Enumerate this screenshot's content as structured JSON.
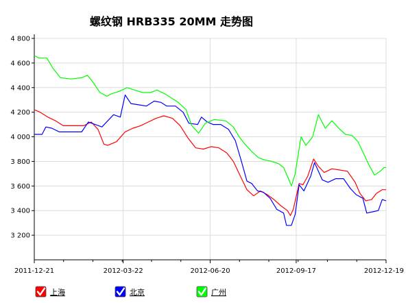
{
  "chart_data": {
    "type": "line",
    "title": "螺纹钢 HRB335 20MM 走势图",
    "xlabel": "",
    "ylabel": "",
    "x_ticks": [
      "2011-12-21",
      "2012-03-22",
      "2012-06-20",
      "2012-09-17",
      "2012-12-19"
    ],
    "y_ticks": [
      "3 200",
      "3 400",
      "3 600",
      "3 800",
      "4 000",
      "4 200",
      "4 400",
      "4 600",
      "4 800"
    ],
    "x_range": [
      "2011-12-21",
      "2012-12-19"
    ],
    "ylim": [
      3000,
      4800
    ],
    "grid": true,
    "legend_position": "bottom",
    "series": [
      {
        "name": "上海",
        "color": "#ff0000",
        "points": [
          [
            "2011-12-21",
            4220
          ],
          [
            "2011-12-27",
            4200
          ],
          [
            "2012-01-04",
            4160
          ],
          [
            "2012-01-12",
            4130
          ],
          [
            "2012-01-20",
            4090
          ],
          [
            "2012-02-01",
            4090
          ],
          [
            "2012-02-10",
            4090
          ],
          [
            "2012-02-18",
            4120
          ],
          [
            "2012-02-25",
            4060
          ],
          [
            "2012-03-02",
            3940
          ],
          [
            "2012-03-06",
            3930
          ],
          [
            "2012-03-15",
            3960
          ],
          [
            "2012-03-24",
            4040
          ],
          [
            "2012-04-01",
            4070
          ],
          [
            "2012-04-09",
            4090
          ],
          [
            "2012-04-17",
            4120
          ],
          [
            "2012-04-25",
            4150
          ],
          [
            "2012-05-03",
            4170
          ],
          [
            "2012-05-12",
            4150
          ],
          [
            "2012-05-20",
            4090
          ],
          [
            "2012-05-28",
            3990
          ],
          [
            "2012-06-05",
            3910
          ],
          [
            "2012-06-13",
            3900
          ],
          [
            "2012-06-21",
            3920
          ],
          [
            "2012-06-29",
            3910
          ],
          [
            "2012-07-07",
            3870
          ],
          [
            "2012-07-14",
            3800
          ],
          [
            "2012-07-20",
            3700
          ],
          [
            "2012-07-28",
            3570
          ],
          [
            "2012-08-04",
            3520
          ],
          [
            "2012-08-11",
            3560
          ],
          [
            "2012-08-18",
            3530
          ],
          [
            "2012-08-25",
            3490
          ],
          [
            "2012-09-01",
            3440
          ],
          [
            "2012-09-08",
            3400
          ],
          [
            "2012-09-11",
            3360
          ],
          [
            "2012-09-14",
            3410
          ],
          [
            "2012-09-20",
            3620
          ],
          [
            "2012-09-24",
            3610
          ],
          [
            "2012-09-29",
            3680
          ],
          [
            "2012-10-05",
            3820
          ],
          [
            "2012-10-10",
            3760
          ],
          [
            "2012-10-16",
            3710
          ],
          [
            "2012-10-24",
            3740
          ],
          [
            "2012-11-01",
            3730
          ],
          [
            "2012-11-09",
            3720
          ],
          [
            "2012-11-17",
            3630
          ],
          [
            "2012-11-22",
            3540
          ],
          [
            "2012-11-28",
            3480
          ],
          [
            "2012-12-04",
            3490
          ],
          [
            "2012-12-09",
            3540
          ],
          [
            "2012-12-15",
            3570
          ],
          [
            "2012-12-19",
            3570
          ]
        ]
      },
      {
        "name": "北京",
        "color": "#0000ff",
        "points": [
          [
            "2011-12-21",
            4020
          ],
          [
            "2011-12-29",
            4020
          ],
          [
            "2012-01-02",
            4080
          ],
          [
            "2012-01-08",
            4070
          ],
          [
            "2012-01-16",
            4040
          ],
          [
            "2012-01-28",
            4040
          ],
          [
            "2012-02-08",
            4040
          ],
          [
            "2012-02-15",
            4120
          ],
          [
            "2012-02-22",
            4100
          ],
          [
            "2012-02-29",
            4080
          ],
          [
            "2012-03-06",
            4130
          ],
          [
            "2012-03-12",
            4180
          ],
          [
            "2012-03-19",
            4160
          ],
          [
            "2012-03-24",
            4340
          ],
          [
            "2012-03-30",
            4270
          ],
          [
            "2012-04-07",
            4260
          ],
          [
            "2012-04-15",
            4250
          ],
          [
            "2012-04-23",
            4290
          ],
          [
            "2012-04-30",
            4280
          ],
          [
            "2012-05-06",
            4250
          ],
          [
            "2012-05-15",
            4250
          ],
          [
            "2012-05-23",
            4200
          ],
          [
            "2012-05-29",
            4110
          ],
          [
            "2012-06-07",
            4100
          ],
          [
            "2012-06-11",
            4160
          ],
          [
            "2012-06-17",
            4120
          ],
          [
            "2012-06-23",
            4100
          ],
          [
            "2012-07-01",
            4100
          ],
          [
            "2012-07-09",
            4060
          ],
          [
            "2012-07-16",
            3970
          ],
          [
            "2012-07-22",
            3810
          ],
          [
            "2012-07-28",
            3640
          ],
          [
            "2012-08-02",
            3620
          ],
          [
            "2012-08-08",
            3560
          ],
          [
            "2012-08-14",
            3550
          ],
          [
            "2012-08-21",
            3500
          ],
          [
            "2012-08-28",
            3410
          ],
          [
            "2012-09-04",
            3380
          ],
          [
            "2012-09-07",
            3280
          ],
          [
            "2012-09-12",
            3280
          ],
          [
            "2012-09-16",
            3370
          ],
          [
            "2012-09-20",
            3610
          ],
          [
            "2012-09-25",
            3560
          ],
          [
            "2012-10-02",
            3680
          ],
          [
            "2012-10-06",
            3790
          ],
          [
            "2012-10-14",
            3650
          ],
          [
            "2012-10-20",
            3630
          ],
          [
            "2012-10-28",
            3660
          ],
          [
            "2012-11-05",
            3660
          ],
          [
            "2012-11-12",
            3580
          ],
          [
            "2012-11-18",
            3530
          ],
          [
            "2012-11-25",
            3500
          ],
          [
            "2012-11-29",
            3380
          ],
          [
            "2012-12-05",
            3390
          ],
          [
            "2012-12-11",
            3400
          ],
          [
            "2012-12-15",
            3490
          ],
          [
            "2012-12-19",
            3480
          ]
        ]
      },
      {
        "name": "广州",
        "color": "#00ff00",
        "points": [
          [
            "2011-12-21",
            4660
          ],
          [
            "2011-12-26",
            4640
          ],
          [
            "2012-01-03",
            4640
          ],
          [
            "2012-01-09",
            4560
          ],
          [
            "2012-01-17",
            4480
          ],
          [
            "2012-01-28",
            4470
          ],
          [
            "2012-02-08",
            4480
          ],
          [
            "2012-02-14",
            4500
          ],
          [
            "2012-02-20",
            4440
          ],
          [
            "2012-02-27",
            4360
          ],
          [
            "2012-03-05",
            4330
          ],
          [
            "2012-03-10",
            4350
          ],
          [
            "2012-03-18",
            4370
          ],
          [
            "2012-03-26",
            4400
          ],
          [
            "2012-04-03",
            4380
          ],
          [
            "2012-04-11",
            4360
          ],
          [
            "2012-04-19",
            4360
          ],
          [
            "2012-04-26",
            4380
          ],
          [
            "2012-05-04",
            4350
          ],
          [
            "2012-05-10",
            4320
          ],
          [
            "2012-05-18",
            4280
          ],
          [
            "2012-05-26",
            4220
          ],
          [
            "2012-06-01",
            4090
          ],
          [
            "2012-06-08",
            4030
          ],
          [
            "2012-06-15",
            4110
          ],
          [
            "2012-06-24",
            4140
          ],
          [
            "2012-07-06",
            4130
          ],
          [
            "2012-07-14",
            4080
          ],
          [
            "2012-07-20",
            4000
          ],
          [
            "2012-07-26",
            3940
          ],
          [
            "2012-08-02",
            3880
          ],
          [
            "2012-08-09",
            3830
          ],
          [
            "2012-08-16",
            3810
          ],
          [
            "2012-08-23",
            3800
          ],
          [
            "2012-08-30",
            3780
          ],
          [
            "2012-09-04",
            3750
          ],
          [
            "2012-09-09",
            3660
          ],
          [
            "2012-09-12",
            3600
          ],
          [
            "2012-09-16",
            3700
          ],
          [
            "2012-09-22",
            4000
          ],
          [
            "2012-09-27",
            3930
          ],
          [
            "2012-10-04",
            4000
          ],
          [
            "2012-10-10",
            4180
          ],
          [
            "2012-10-17",
            4070
          ],
          [
            "2012-10-24",
            4130
          ],
          [
            "2012-10-31",
            4070
          ],
          [
            "2012-11-07",
            4020
          ],
          [
            "2012-11-14",
            4010
          ],
          [
            "2012-11-20",
            3960
          ],
          [
            "2012-11-26",
            3860
          ],
          [
            "2012-12-02",
            3760
          ],
          [
            "2012-12-07",
            3690
          ],
          [
            "2012-12-13",
            3720
          ],
          [
            "2012-12-17",
            3750
          ],
          [
            "2012-12-19",
            3750
          ]
        ]
      }
    ]
  }
}
